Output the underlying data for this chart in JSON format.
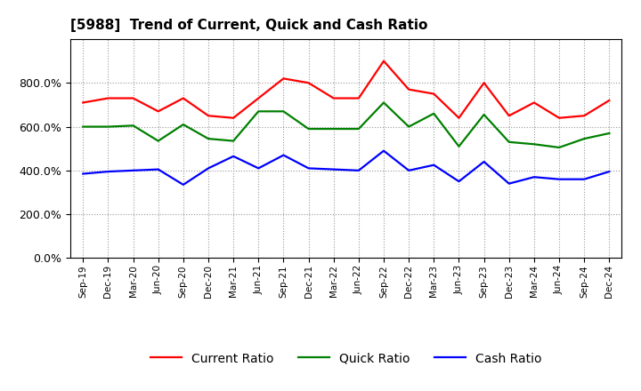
{
  "title": "[5988]  Trend of Current, Quick and Cash Ratio",
  "x_labels": [
    "Sep-19",
    "Dec-19",
    "Mar-20",
    "Jun-20",
    "Sep-20",
    "Dec-20",
    "Mar-21",
    "Jun-21",
    "Sep-21",
    "Dec-21",
    "Mar-22",
    "Jun-22",
    "Sep-22",
    "Dec-22",
    "Mar-23",
    "Jun-23",
    "Sep-23",
    "Dec-23",
    "Mar-24",
    "Jun-24",
    "Sep-24",
    "Dec-24"
  ],
  "current_ratio": [
    710,
    730,
    730,
    670,
    730,
    650,
    640,
    730,
    820,
    800,
    730,
    730,
    900,
    770,
    750,
    640,
    800,
    650,
    710,
    640,
    650,
    720
  ],
  "quick_ratio": [
    600,
    600,
    605,
    535,
    610,
    545,
    535,
    670,
    670,
    590,
    590,
    590,
    710,
    600,
    660,
    510,
    655,
    530,
    520,
    505,
    545,
    570
  ],
  "cash_ratio": [
    385,
    395,
    400,
    405,
    335,
    410,
    465,
    410,
    470,
    410,
    405,
    400,
    490,
    400,
    425,
    350,
    440,
    340,
    370,
    360,
    360,
    395
  ],
  "ylim": [
    0,
    1000
  ],
  "yticks": [
    0,
    200,
    400,
    600,
    800
  ],
  "background_color": "#ffffff",
  "grid_color": "#999999",
  "current_color": "#ff0000",
  "quick_color": "#008000",
  "cash_color": "#0000ff",
  "line_width": 1.6
}
